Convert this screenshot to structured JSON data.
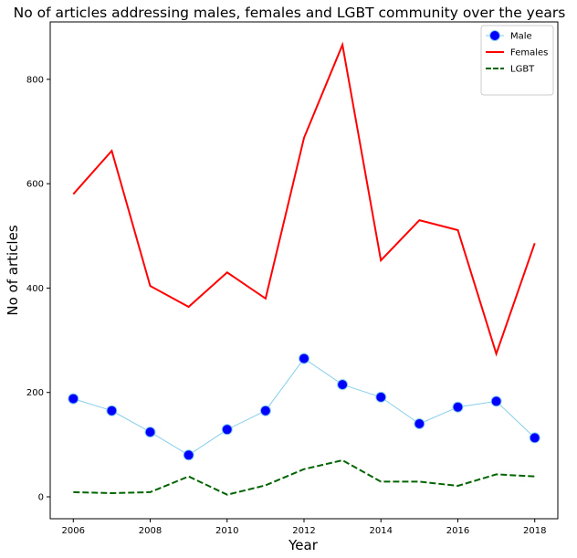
{
  "chart_data": {
    "type": "line",
    "title": "No of articles addressing males, females and LGBT community over the years",
    "xlabel": "Year",
    "ylabel": "No of articles",
    "x": [
      2006,
      2007,
      2008,
      2009,
      2010,
      2011,
      2012,
      2013,
      2014,
      2015,
      2016,
      2017,
      2018
    ],
    "xlim": [
      2005.4,
      2018.6
    ],
    "ylim": [
      -42,
      910
    ],
    "xticks": [
      2006,
      2008,
      2010,
      2012,
      2014,
      2016,
      2018
    ],
    "yticks": [
      0,
      200,
      400,
      600,
      800
    ],
    "grid": false,
    "legend_position": "top-right",
    "series": [
      {
        "name": "Male",
        "values": [
          188,
          165,
          124,
          80,
          129,
          165,
          265,
          215,
          191,
          140,
          172,
          183,
          113
        ],
        "color": "#87ceeb",
        "marker_color": "#0000ff",
        "style": "solid-marker"
      },
      {
        "name": "Females",
        "values": [
          580,
          663,
          404,
          364,
          430,
          380,
          688,
          866,
          453,
          530,
          511,
          274,
          486
        ],
        "color": "#ff0000",
        "style": "solid"
      },
      {
        "name": "LGBT",
        "values": [
          9,
          7,
          9,
          39,
          4,
          22,
          53,
          70,
          29,
          29,
          21,
          43,
          39
        ],
        "color": "#006400",
        "style": "dashed"
      }
    ]
  }
}
